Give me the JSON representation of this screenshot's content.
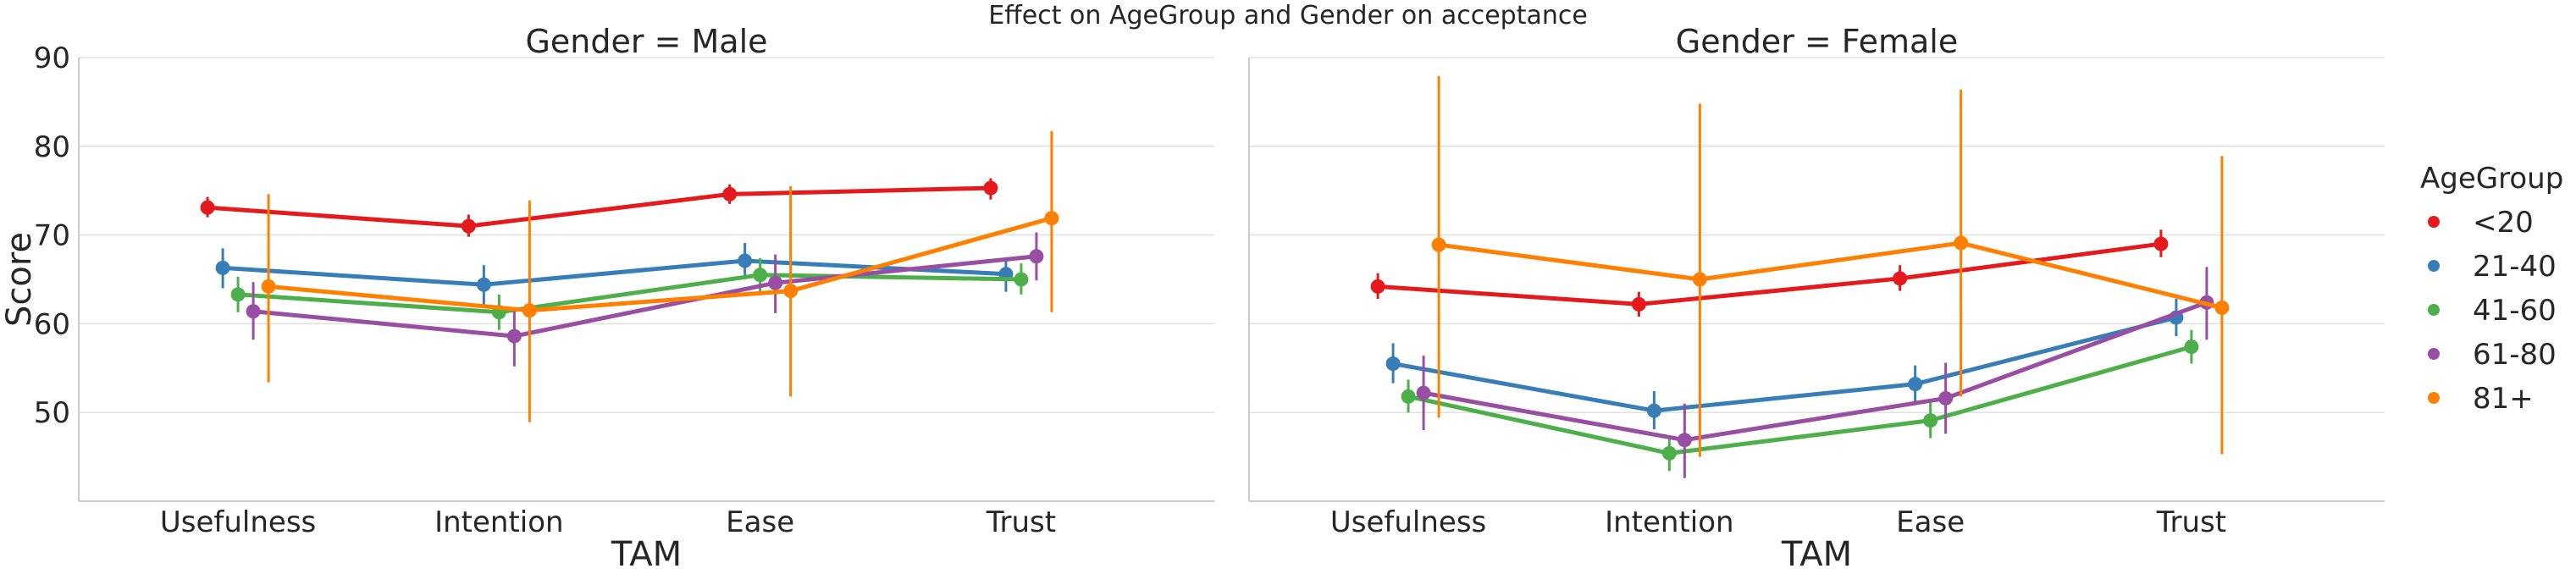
{
  "chart_data": {
    "type": "line",
    "title": "Effect on AgeGroup and Gender on acceptance",
    "xlabel": "TAM",
    "ylabel": "Score",
    "ylim": [
      40,
      90
    ],
    "yticks": [
      "50",
      "60",
      "70",
      "80",
      "90"
    ],
    "categories": [
      "Usefulness",
      "Intention",
      "Ease",
      "Trust"
    ],
    "grid": true,
    "legend": {
      "title": "AgeGroup",
      "placement": "right",
      "entries": [
        {
          "name": "<20",
          "color": "#e41a1c"
        },
        {
          "name": "21-40",
          "color": "#377eb8"
        },
        {
          "name": "41-60",
          "color": "#4daf4a"
        },
        {
          "name": "61-80",
          "color": "#984ea3"
        },
        {
          "name": "81+",
          "color": "#ff7f00"
        }
      ]
    },
    "panels": [
      {
        "title": "Gender = Male",
        "series": [
          {
            "name": "<20",
            "values": [
              73.1,
              71.0,
              74.6,
              75.3
            ],
            "ci_low": [
              72.0,
              69.8,
              73.5,
              74.0
            ],
            "ci_high": [
              74.3,
              72.3,
              75.7,
              76.4
            ]
          },
          {
            "name": "21-40",
            "values": [
              66.3,
              64.4,
              67.1,
              65.6
            ],
            "ci_low": [
              64.0,
              62.1,
              65.1,
              63.6
            ],
            "ci_high": [
              68.5,
              66.6,
              69.1,
              67.5
            ]
          },
          {
            "name": "41-60",
            "values": [
              63.3,
              61.3,
              65.5,
              65.0
            ],
            "ci_low": [
              61.3,
              59.3,
              63.6,
              63.3
            ],
            "ci_high": [
              65.3,
              63.3,
              67.4,
              66.8
            ]
          },
          {
            "name": "61-80",
            "values": [
              61.4,
              58.6,
              64.6,
              67.6
            ],
            "ci_low": [
              58.2,
              55.2,
              61.2,
              64.9
            ],
            "ci_high": [
              64.7,
              61.8,
              67.8,
              70.3
            ]
          },
          {
            "name": "81+",
            "values": [
              64.2,
              61.5,
              63.7,
              71.9
            ],
            "ci_low": [
              53.4,
              48.9,
              51.8,
              61.3
            ],
            "ci_high": [
              74.6,
              73.9,
              75.5,
              81.7
            ]
          }
        ]
      },
      {
        "title": "Gender = Female",
        "series": [
          {
            "name": "<20",
            "values": [
              64.2,
              62.2,
              65.1,
              69.0
            ],
            "ci_low": [
              62.8,
              60.8,
              63.7,
              67.5
            ],
            "ci_high": [
              65.7,
              63.6,
              66.6,
              70.6
            ]
          },
          {
            "name": "21-40",
            "values": [
              55.5,
              50.2,
              53.2,
              60.7
            ],
            "ci_low": [
              53.3,
              48.1,
              51.1,
              58.6
            ],
            "ci_high": [
              57.8,
              52.4,
              55.3,
              62.8
            ]
          },
          {
            "name": "41-60",
            "values": [
              51.8,
              45.4,
              49.1,
              57.4
            ],
            "ci_low": [
              50.0,
              43.4,
              47.1,
              55.5
            ],
            "ci_high": [
              53.7,
              47.3,
              51.1,
              59.3
            ]
          },
          {
            "name": "61-80",
            "values": [
              52.2,
              46.9,
              51.6,
              62.4
            ],
            "ci_low": [
              48.0,
              42.6,
              47.6,
              58.2
            ],
            "ci_high": [
              56.4,
              51.0,
              55.6,
              66.4
            ]
          },
          {
            "name": "81+",
            "values": [
              68.9,
              65.0,
              69.1,
              61.8
            ],
            "ci_low": [
              49.4,
              45.0,
              51.8,
              45.3
            ],
            "ci_high": [
              87.9,
              84.8,
              86.4,
              78.9
            ]
          }
        ]
      }
    ]
  }
}
